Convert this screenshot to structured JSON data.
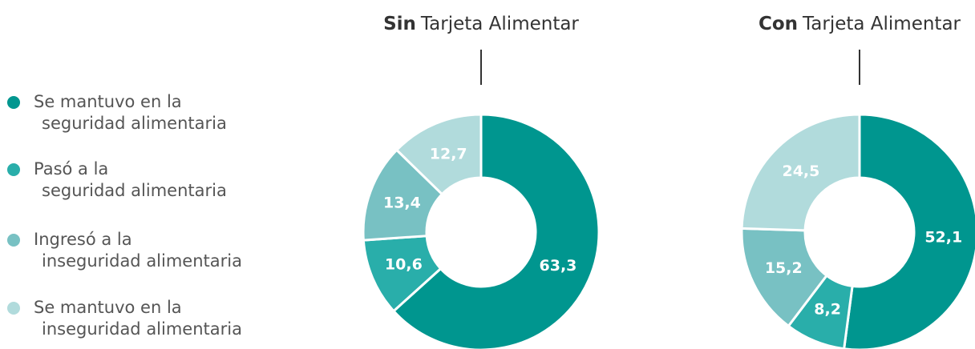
{
  "legend": {
    "labels": [
      "Se mantuvo en la\nseguridad alimentaria",
      "Pasó a la\nseguridad alimentaria",
      "Ingresó a la\ninseguridad alimentaria",
      "Se mantuvo en la\ninseguridad alimentaria"
    ],
    "colors": [
      "#00968f",
      "#29aeaa",
      "#78c1c3",
      "#b1dbdc"
    ]
  },
  "chart_data": [
    {
      "type": "donut",
      "title_bold": "Sin",
      "title": "Tarjeta Alimentar",
      "values": [
        63.3,
        10.6,
        13.4,
        12.7
      ],
      "value_labels": [
        "63,3",
        "10,6",
        "13,4",
        "12,7"
      ],
      "colors": [
        "#00968f",
        "#29aeaa",
        "#78c1c3",
        "#b1dbdc"
      ]
    },
    {
      "type": "donut",
      "title_bold": "Con",
      "title": "Tarjeta Alimentar",
      "values": [
        52.1,
        8.2,
        15.2,
        24.5
      ],
      "value_labels": [
        "52,1",
        "8,2",
        "15,2",
        "24,5"
      ],
      "colors": [
        "#00968f",
        "#29aeaa",
        "#78c1c3",
        "#b1dbdc"
      ]
    }
  ]
}
